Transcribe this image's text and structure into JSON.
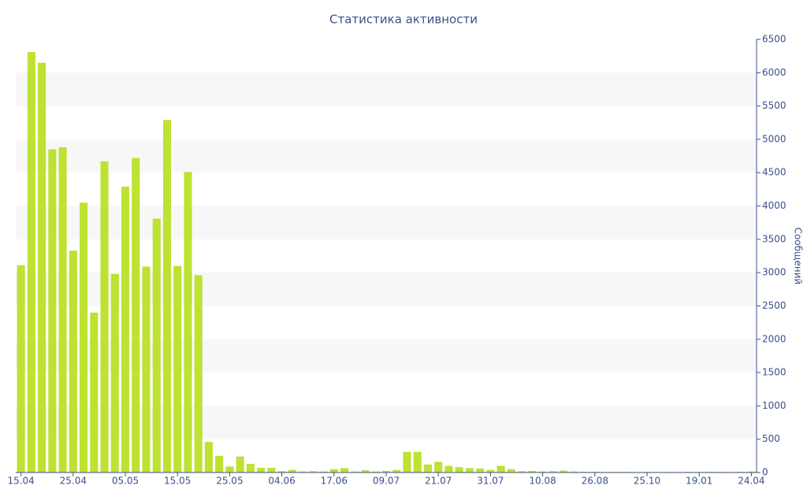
{
  "chart_data": {
    "type": "bar",
    "title": "Статистика активности",
    "y_label": "Сообщений",
    "categories": [
      "15.04",
      null,
      null,
      null,
      null,
      "25.04",
      null,
      null,
      null,
      null,
      "05.05",
      null,
      null,
      null,
      null,
      "15.05",
      null,
      null,
      null,
      null,
      "25.05",
      null,
      null,
      null,
      null,
      "04.06",
      null,
      null,
      null,
      null,
      "17.06",
      null,
      null,
      null,
      null,
      "09.07",
      null,
      null,
      null,
      null,
      "21.07",
      null,
      null,
      null,
      null,
      "31.07",
      null,
      null,
      null,
      null,
      "10.08",
      null,
      null,
      null,
      null,
      "26.08",
      null,
      null,
      null,
      null,
      "25.10",
      null,
      null,
      null,
      null,
      "19.01",
      null,
      null,
      null,
      null,
      "24.04"
    ],
    "values": [
      3110,
      6310,
      6150,
      4850,
      4880,
      3330,
      4050,
      2400,
      4670,
      2980,
      4290,
      4720,
      3090,
      3810,
      5290,
      3100,
      4510,
      2960,
      460,
      250,
      90,
      240,
      130,
      70,
      70,
      20,
      40,
      15,
      20,
      15,
      50,
      65,
      15,
      35,
      15,
      25,
      40,
      310,
      310,
      120,
      160,
      100,
      80,
      65,
      60,
      40,
      100,
      50,
      20,
      25,
      15,
      20,
      30,
      15,
      10,
      10,
      8,
      10,
      10,
      8,
      10,
      8,
      8,
      8,
      10,
      8,
      10,
      10,
      8,
      10,
      15
    ],
    "color": "#bde232",
    "ylim": [
      0,
      6500
    ],
    "yticks": [
      0,
      500,
      1000,
      1500,
      2000,
      2500,
      3000,
      3500,
      4000,
      4500,
      5000,
      5500,
      6000,
      6500
    ],
    "grid": true
  }
}
